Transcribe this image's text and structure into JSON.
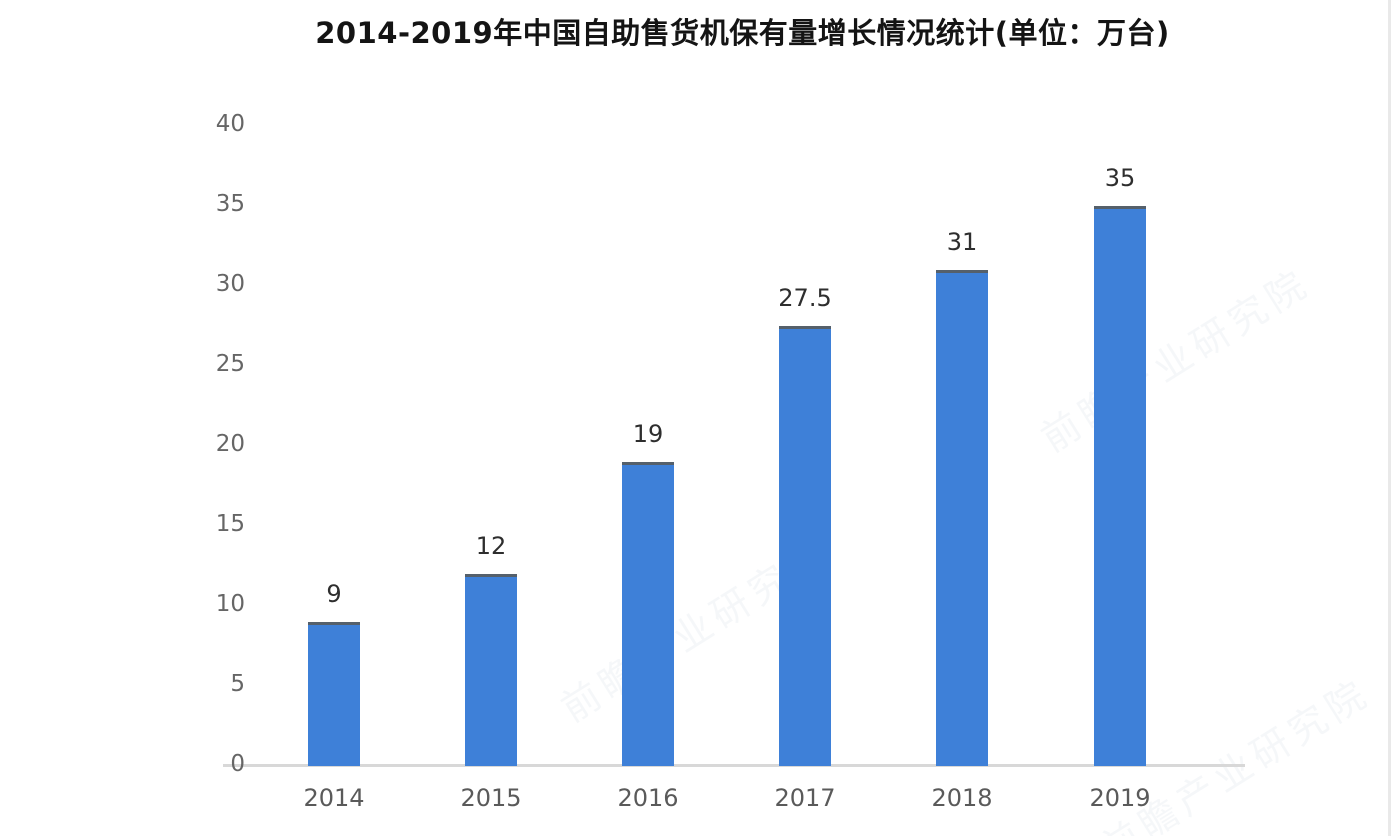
{
  "title": "2014-2019年中国自助售货机保有量增长情况统计(单位：万台)",
  "chart_data": {
    "type": "bar",
    "title": "2014-2019年中国自助售货机保有量增长情况统计(单位：万台)",
    "categories": [
      "2014",
      "2015",
      "2016",
      "2017",
      "2018",
      "2019"
    ],
    "values": [
      9,
      12,
      19,
      27.5,
      31,
      35
    ],
    "data_labels": [
      "9",
      "12",
      "19",
      "27.5",
      "31",
      "35"
    ],
    "xlabel": "",
    "ylabel": "",
    "ylim": [
      0,
      40
    ],
    "yticks": [
      0,
      5,
      10,
      15,
      20,
      25,
      30,
      35,
      40
    ],
    "grid": false,
    "legend": "none",
    "unit": "万台"
  },
  "colors": {
    "background": "#ffffff",
    "bar_fill": "#3e80d8",
    "bar_top_cap": "#55606b",
    "axis_line": "#d8d8d8",
    "ytick_color": "#666666",
    "xtick_color": "#5a5a5a",
    "data_label_color": "#2e2e2e",
    "title_color": "#141414",
    "watermark_color": "#8fa3b8",
    "right_edge_line": "#e9e9e9"
  },
  "watermark": {
    "text": "前瞻产业研究院"
  }
}
